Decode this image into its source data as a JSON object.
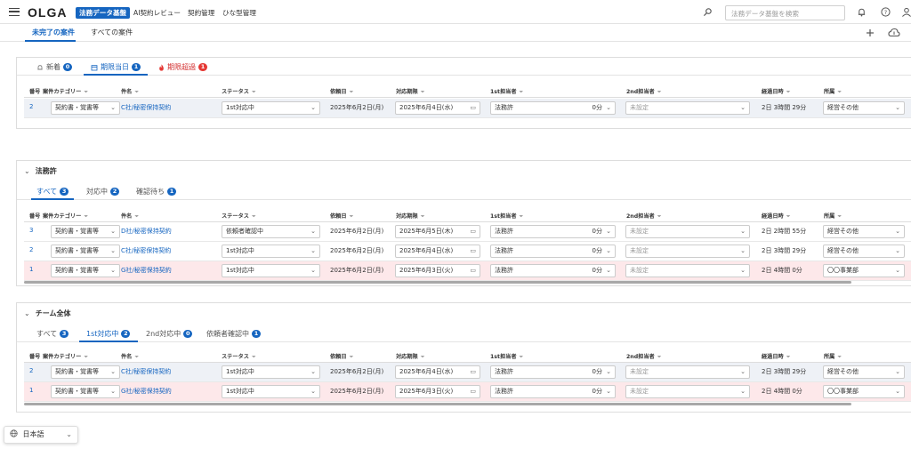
{
  "header": {
    "logo": "OLGA",
    "nav": [
      "法務データ基盤",
      "AI契約レビュー",
      "契約管理",
      "ひな型管理"
    ],
    "search_placeholder": "法務データ基盤を検索",
    "icons": [
      "menu-icon",
      "person-search-icon",
      "bell-icon",
      "help-icon",
      "avatar-icon",
      "plus-icon",
      "cloud-icon"
    ]
  },
  "main_tabs": [
    "未完了の案件",
    "すべての案件"
  ],
  "columns": {
    "num": "番号",
    "category": "案件カテゴリー",
    "name": "件名",
    "status": "ステータス",
    "requested": "依頼日",
    "deadline": "対応期限",
    "first": "1st担当者",
    "second": "2nd担当者",
    "elapsed": "経過日時",
    "dept": "所属"
  },
  "section1": {
    "tabs": [
      {
        "label": "新着",
        "count": "0"
      },
      {
        "label": "期限当日",
        "count": "1"
      },
      {
        "label": "期限超過",
        "count": "1"
      }
    ],
    "rows": [
      {
        "num": "2",
        "category": "契約書・覚書等",
        "name": "C社/秘密保持契約",
        "status": "1st対応中",
        "requested": "2025年6月2日(月)",
        "deadline": "2025年6月4日(水)",
        "first": "法務許",
        "first_time": "0分",
        "second": "未設定",
        "elapsed": "2日 3時間 29分",
        "dept": "経営その他"
      }
    ]
  },
  "section2": {
    "title": "法務許",
    "tabs": [
      {
        "label": "すべて",
        "count": "3"
      },
      {
        "label": "対応中",
        "count": "2"
      },
      {
        "label": "確認待ち",
        "count": "1"
      }
    ],
    "rows": [
      {
        "num": "3",
        "category": "契約書・覚書等",
        "name": "D社/秘密保持契約",
        "status": "依頼者確認中",
        "requested": "2025年6月2日(月)",
        "deadline": "2025年6月5日(木)",
        "first": "法務許",
        "first_time": "0分",
        "second": "未設定",
        "elapsed": "2日 2時間 55分",
        "dept": "経営その他"
      },
      {
        "num": "2",
        "category": "契約書・覚書等",
        "name": "C社/秘密保持契約",
        "status": "1st対応中",
        "requested": "2025年6月2日(月)",
        "deadline": "2025年6月4日(水)",
        "first": "法務許",
        "first_time": "0分",
        "second": "未設定",
        "elapsed": "2日 3時間 29分",
        "dept": "経営その他"
      },
      {
        "num": "1",
        "category": "契約書・覚書等",
        "name": "G社/秘密保持契約",
        "status": "1st対応中",
        "requested": "2025年6月2日(月)",
        "deadline": "2025年6月3日(火)",
        "first": "法務許",
        "first_time": "0分",
        "second": "未設定",
        "elapsed": "2日 4時間 0分",
        "dept": "〇〇事業部"
      }
    ]
  },
  "section3": {
    "title": "チーム全体",
    "tabs": [
      {
        "label": "すべて",
        "count": "3"
      },
      {
        "label": "1st対応中",
        "count": "2"
      },
      {
        "label": "2nd対応中",
        "count": "0"
      },
      {
        "label": "依頼者確認中",
        "count": "1"
      }
    ],
    "rows": [
      {
        "num": "2",
        "category": "契約書・覚書等",
        "name": "C社/秘密保持契約",
        "status": "1st対応中",
        "requested": "2025年6月2日(月)",
        "deadline": "2025年6月4日(水)",
        "first": "法務許",
        "first_time": "0分",
        "second": "未設定",
        "elapsed": "2日 3時間 29分",
        "dept": "経営その他"
      },
      {
        "num": "1",
        "category": "契約書・覚書等",
        "name": "G社/秘密保持契約",
        "status": "1st対応中",
        "requested": "2025年6月2日(月)",
        "deadline": "2025年6月3日(火)",
        "first": "法務許",
        "first_time": "0分",
        "second": "未設定",
        "elapsed": "2日 4時間 0分",
        "dept": "〇〇事業部"
      }
    ]
  },
  "language": "日本語",
  "colors": {
    "accent": "#1565c0",
    "overdue": "#d32f2f",
    "overdue_row": "#fde8ea"
  }
}
